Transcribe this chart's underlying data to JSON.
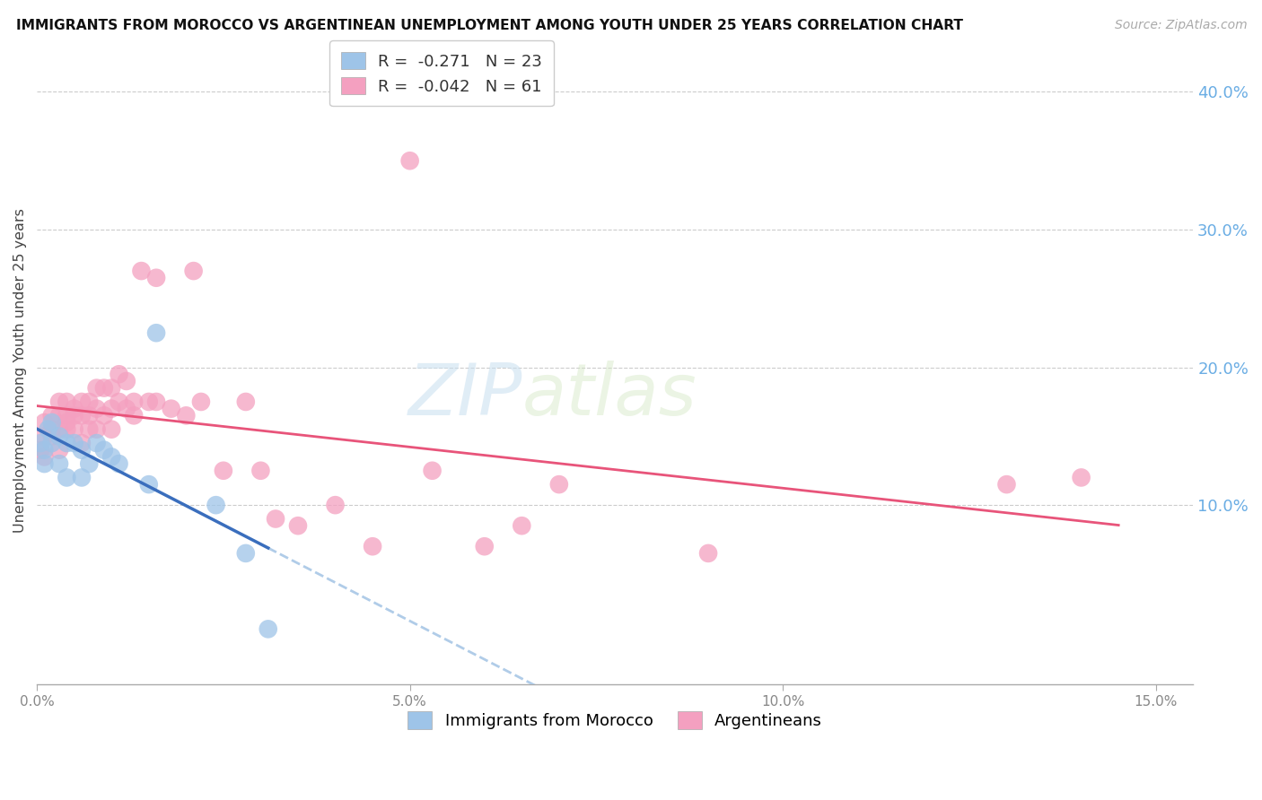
{
  "title": "IMMIGRANTS FROM MOROCCO VS ARGENTINEAN UNEMPLOYMENT AMONG YOUTH UNDER 25 YEARS CORRELATION CHART",
  "source": "Source: ZipAtlas.com",
  "ylabel": "Unemployment Among Youth under 25 years",
  "legend_label1": "Immigrants from Morocco",
  "legend_label2": "Argentineans",
  "r1": "-0.271",
  "n1": "23",
  "r2": "-0.042",
  "n2": "61",
  "color_blue": "#9ec4e8",
  "color_pink": "#f4a0c0",
  "color_blue_line": "#3a6ebd",
  "color_pink_line": "#e8547a",
  "color_blue_dashed": "#b0cce8",
  "xlim": [
    0.0,
    0.155
  ],
  "ylim": [
    -0.03,
    0.425
  ],
  "xticks": [
    0.0,
    0.05,
    0.1,
    0.15
  ],
  "yticks_right": [
    0.1,
    0.2,
    0.3,
    0.4
  ],
  "morocco_x": [
    0.0005,
    0.001,
    0.001,
    0.0015,
    0.002,
    0.002,
    0.003,
    0.003,
    0.004,
    0.004,
    0.005,
    0.006,
    0.006,
    0.007,
    0.008,
    0.009,
    0.01,
    0.011,
    0.015,
    0.016,
    0.024,
    0.028,
    0.031
  ],
  "morocco_y": [
    0.145,
    0.14,
    0.13,
    0.155,
    0.16,
    0.145,
    0.15,
    0.13,
    0.145,
    0.12,
    0.145,
    0.14,
    0.12,
    0.13,
    0.145,
    0.14,
    0.135,
    0.13,
    0.115,
    0.225,
    0.1,
    0.065,
    0.01
  ],
  "argentina_x": [
    0.0005,
    0.001,
    0.001,
    0.001,
    0.002,
    0.002,
    0.002,
    0.003,
    0.003,
    0.003,
    0.003,
    0.004,
    0.004,
    0.004,
    0.004,
    0.005,
    0.005,
    0.005,
    0.006,
    0.006,
    0.006,
    0.007,
    0.007,
    0.007,
    0.008,
    0.008,
    0.008,
    0.009,
    0.009,
    0.01,
    0.01,
    0.01,
    0.011,
    0.011,
    0.012,
    0.012,
    0.013,
    0.013,
    0.014,
    0.015,
    0.016,
    0.016,
    0.018,
    0.02,
    0.021,
    0.022,
    0.025,
    0.028,
    0.03,
    0.032,
    0.035,
    0.04,
    0.045,
    0.05,
    0.053,
    0.06,
    0.065,
    0.07,
    0.09,
    0.13,
    0.14
  ],
  "argentina_y": [
    0.14,
    0.16,
    0.15,
    0.135,
    0.165,
    0.155,
    0.15,
    0.175,
    0.165,
    0.155,
    0.14,
    0.165,
    0.175,
    0.16,
    0.155,
    0.17,
    0.165,
    0.155,
    0.175,
    0.165,
    0.145,
    0.175,
    0.165,
    0.155,
    0.185,
    0.17,
    0.155,
    0.185,
    0.165,
    0.185,
    0.17,
    0.155,
    0.195,
    0.175,
    0.19,
    0.17,
    0.175,
    0.165,
    0.27,
    0.175,
    0.265,
    0.175,
    0.17,
    0.165,
    0.27,
    0.175,
    0.125,
    0.175,
    0.125,
    0.09,
    0.085,
    0.1,
    0.07,
    0.35,
    0.125,
    0.07,
    0.085,
    0.115,
    0.065,
    0.115,
    0.12
  ]
}
